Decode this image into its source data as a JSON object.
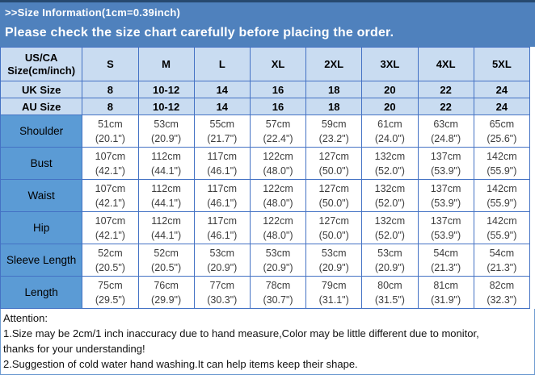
{
  "banner": {
    "title": ">>Size Information(1cm=0.39inch)",
    "subtitle": "Please check the size chart carefully before placing the order."
  },
  "table": {
    "corner_line1": "US/CA",
    "corner_line2": "Size(cm/inch)",
    "size_columns": [
      "S",
      "M",
      "L",
      "XL",
      "2XL",
      "3XL",
      "4XL",
      "5XL"
    ],
    "size_rows": [
      {
        "label": "UK Size",
        "values": [
          "8",
          "10-12",
          "14",
          "16",
          "18",
          "20",
          "22",
          "24"
        ]
      },
      {
        "label": "AU Size",
        "values": [
          "8",
          "10-12",
          "14",
          "16",
          "18",
          "20",
          "22",
          "24"
        ]
      }
    ],
    "measurement_rows": [
      {
        "label": "Shoulder",
        "cm": [
          "51cm",
          "53cm",
          "55cm",
          "57cm",
          "59cm",
          "61cm",
          "63cm",
          "65cm"
        ],
        "inch": [
          "(20.1\")",
          "(20.9\")",
          "(21.7\")",
          "(22.4\")",
          "(23.2\")",
          "(24.0\")",
          "(24.8\")",
          "(25.6\")"
        ]
      },
      {
        "label": "Bust",
        "cm": [
          "107cm",
          "112cm",
          "117cm",
          "122cm",
          "127cm",
          "132cm",
          "137cm",
          "142cm"
        ],
        "inch": [
          "(42.1\")",
          "(44.1\")",
          "(46.1\")",
          "(48.0\")",
          "(50.0\")",
          "(52.0\")",
          "(53.9\")",
          "(55.9\")"
        ]
      },
      {
        "label": "Waist",
        "cm": [
          "107cm",
          "112cm",
          "117cm",
          "122cm",
          "127cm",
          "132cm",
          "137cm",
          "142cm"
        ],
        "inch": [
          "(42.1\")",
          "(44.1\")",
          "(46.1\")",
          "(48.0\")",
          "(50.0\")",
          "(52.0\")",
          "(53.9\")",
          "(55.9\")"
        ]
      },
      {
        "label": "Hip",
        "cm": [
          "107cm",
          "112cm",
          "117cm",
          "122cm",
          "127cm",
          "132cm",
          "137cm",
          "142cm"
        ],
        "inch": [
          "(42.1\")",
          "(44.1\")",
          "(46.1\")",
          "(48.0\")",
          "(50.0\")",
          "(52.0\")",
          "(53.9\")",
          "(55.9\")"
        ]
      },
      {
        "label": "Sleeve Length",
        "cm": [
          "52cm",
          "52cm",
          "53cm",
          "53cm",
          "53cm",
          "53cm",
          "54cm",
          "54cm"
        ],
        "inch": [
          "(20.5\")",
          "(20.5\")",
          "(20.9\")",
          "(20.9\")",
          "(20.9\")",
          "(20.9\")",
          "(21.3\")",
          "(21.3\")"
        ]
      },
      {
        "label": "Length",
        "cm": [
          "75cm",
          "76cm",
          "77cm",
          "78cm",
          "79cm",
          "80cm",
          "81cm",
          "82cm"
        ],
        "inch": [
          "(29.5\")",
          "(29.9\")",
          "(30.3\")",
          "(30.7\")",
          "(31.1\")",
          "(31.5\")",
          "(31.9\")",
          "(32.3\")"
        ]
      }
    ]
  },
  "attention": {
    "lines": [
      "Attention:",
      "1.Size may be 2cm/1 inch inaccuracy due to hand measure,Color may be little different due to monitor,",
      "thanks for your understanding!",
      "2.Suggestion of cold water hand washing.It can help items keep their shape."
    ]
  },
  "colors": {
    "top_line_navy": "#27496f",
    "banner_blue": "#4f81bd",
    "header_cell_blue": "#c9dcf1",
    "label_cell_blue": "#5b9bd5",
    "border_blue": "#4472c4",
    "banner_text": "#ffffff",
    "data_text": "#3d3d3d"
  }
}
